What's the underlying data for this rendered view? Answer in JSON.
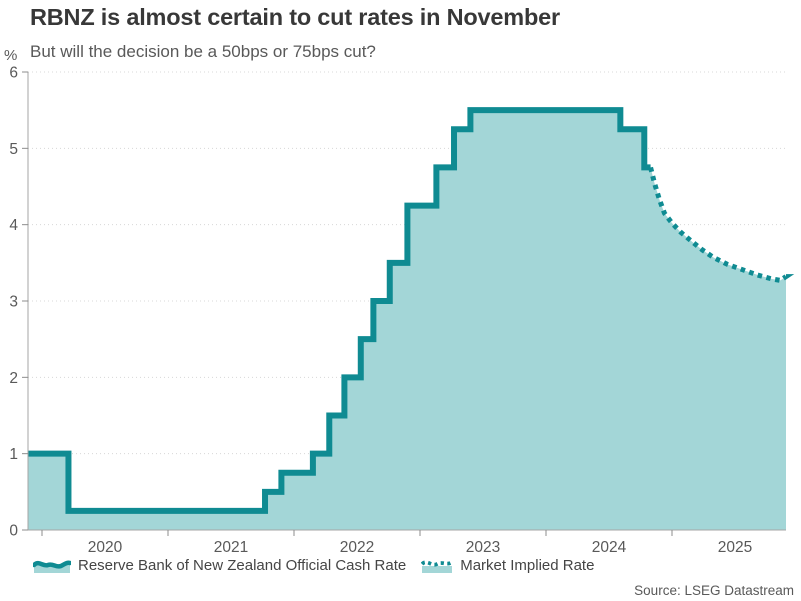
{
  "header": {
    "title": "RBNZ is almost certain to cut rates in November",
    "subtitle": "But will the decision be a 50bps or 75bps cut?"
  },
  "axes": {
    "y_unit": "%",
    "y_ticks": [
      0,
      1,
      2,
      3,
      4,
      5,
      6
    ],
    "x_ticks": [
      "2020",
      "2021",
      "2022",
      "2023",
      "2024",
      "2025"
    ],
    "y_min": 0,
    "y_max": 6
  },
  "chart_data": {
    "type": "area",
    "title": "RBNZ is almost certain to cut rates in November",
    "subtitle": "But will the decision be a 50bps or 75bps cut?",
    "ylabel": "%",
    "ylim": [
      0,
      6
    ],
    "x_years": [
      2020,
      2021,
      2022,
      2023,
      2024,
      2025
    ],
    "grid": "dotted horizontal",
    "legend_position": "bottom",
    "series": [
      {
        "name": "Reserve Bank of New Zealand Official Cash Rate",
        "style": "step-solid-area",
        "points": [
          [
            2019.889,
            1.0
          ],
          [
            2020.21,
            0.25
          ],
          [
            2021.77,
            0.5
          ],
          [
            2021.9,
            0.75
          ],
          [
            2022.15,
            1.0
          ],
          [
            2022.28,
            1.5
          ],
          [
            2022.4,
            2.0
          ],
          [
            2022.53,
            2.5
          ],
          [
            2022.63,
            3.0
          ],
          [
            2022.76,
            3.5
          ],
          [
            2022.9,
            4.25
          ],
          [
            2023.13,
            4.75
          ],
          [
            2023.27,
            5.25
          ],
          [
            2023.4,
            5.5
          ],
          [
            2024.59,
            5.25
          ],
          [
            2024.78,
            4.75
          ],
          [
            2024.83,
            4.75
          ]
        ]
      },
      {
        "name": "Market Implied Rate",
        "style": "dotted-line",
        "points": [
          [
            2024.83,
            4.75
          ],
          [
            2024.86,
            4.55
          ],
          [
            2024.9,
            4.33
          ],
          [
            2024.94,
            4.15
          ],
          [
            2025.0,
            4.02
          ],
          [
            2025.07,
            3.9
          ],
          [
            2025.15,
            3.79
          ],
          [
            2025.24,
            3.67
          ],
          [
            2025.33,
            3.57
          ],
          [
            2025.44,
            3.48
          ],
          [
            2025.56,
            3.41
          ],
          [
            2025.68,
            3.34
          ],
          [
            2025.79,
            3.29
          ],
          [
            2025.86,
            3.27
          ],
          [
            2025.905,
            3.32
          ]
        ]
      }
    ]
  },
  "legend": [
    {
      "label": "Reserve Bank of New Zealand Official Cash Rate",
      "swatch": "area-wave-icon"
    },
    {
      "label": "Market Implied Rate",
      "swatch": "dotted-wave-icon"
    }
  ],
  "source": "Source: LSEG Datastream",
  "colors": {
    "line": "#0f8b92",
    "fill": "#a3d6d7",
    "grid": "#d8d8d8",
    "title": "#383838",
    "text": "#595959"
  }
}
